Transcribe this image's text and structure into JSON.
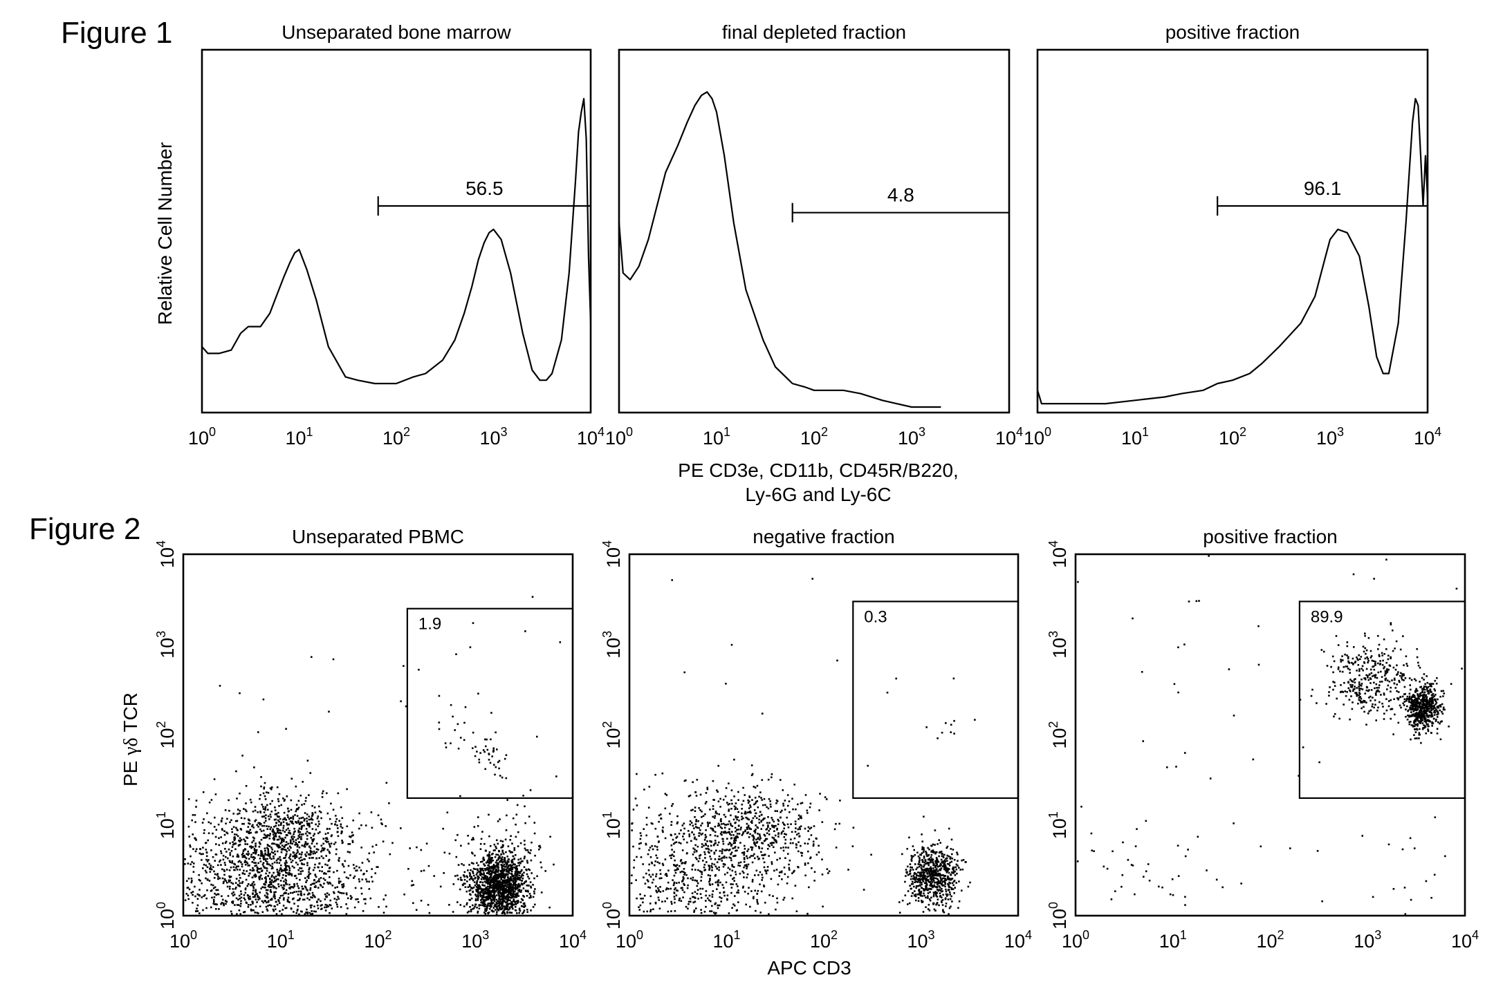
{
  "figures": [
    {
      "label": "Figure 1",
      "y_axis_label": "Relative Cell Number",
      "x_axis_label_lines": [
        "PE CD3e, CD11b, CD45R/B220,",
        "Ly-6G and Ly-6C"
      ]
    },
    {
      "label": "Figure 2",
      "y_axis_label": [
        "PE ",
        "γδ",
        " TCR"
      ],
      "x_axis_label": "APC CD3"
    }
  ],
  "chart_data": [
    {
      "type": "line",
      "title": "Unseparated bone marrow",
      "xlabel": "PE CD3e, CD11b, CD45R/B220, Ly-6G and Ly-6C",
      "ylabel": "Relative Cell Number",
      "xscale": "log",
      "xlim": [
        1,
        10000
      ],
      "ylim": [
        0,
        1
      ],
      "xticks": [
        {
          "base": "10",
          "exp": "0"
        },
        {
          "base": "10",
          "exp": "1"
        },
        {
          "base": "10",
          "exp": "2"
        },
        {
          "base": "10",
          "exp": "3"
        },
        {
          "base": "10",
          "exp": "4"
        }
      ],
      "gate": {
        "from": 65,
        "to": 10000,
        "level": 0.6,
        "label": "56.5"
      },
      "x": [
        1,
        1.15,
        1.5,
        2,
        2.5,
        3,
        4,
        5,
        6,
        7,
        8,
        9,
        10,
        12,
        15,
        20,
        30,
        40,
        60,
        80,
        100,
        150,
        200,
        300,
        400,
        500,
        600,
        700,
        800,
        900,
        1000,
        1200,
        1500,
        2000,
        2500,
        3000,
        3500,
        4000,
        5000,
        6000,
        7000,
        7500,
        8000,
        8500,
        9000,
        9500,
        10000
      ],
      "y": [
        0.18,
        0.16,
        0.16,
        0.17,
        0.22,
        0.24,
        0.24,
        0.28,
        0.34,
        0.39,
        0.43,
        0.46,
        0.47,
        0.41,
        0.32,
        0.18,
        0.09,
        0.08,
        0.07,
        0.07,
        0.07,
        0.09,
        0.1,
        0.14,
        0.2,
        0.28,
        0.36,
        0.44,
        0.49,
        0.52,
        0.53,
        0.5,
        0.4,
        0.22,
        0.11,
        0.08,
        0.08,
        0.1,
        0.2,
        0.4,
        0.68,
        0.82,
        0.88,
        0.92,
        0.8,
        0.45,
        0.25
      ]
    },
    {
      "type": "line",
      "title": "final depleted fraction",
      "xlabel": "PE CD3e, CD11b, CD45R/B220, Ly-6G and Ly-6C",
      "ylabel": "Relative Cell Number",
      "xscale": "log",
      "xlim": [
        1,
        10000
      ],
      "ylim": [
        0,
        1
      ],
      "xticks": [
        {
          "base": "10",
          "exp": "0"
        },
        {
          "base": "10",
          "exp": "1"
        },
        {
          "base": "10",
          "exp": "2"
        },
        {
          "base": "10",
          "exp": "3"
        },
        {
          "base": "10",
          "exp": "4"
        }
      ],
      "gate": {
        "from": 60,
        "to": 10000,
        "level": 0.58,
        "label": "4.8"
      },
      "x": [
        1,
        1.1,
        1.3,
        1.6,
        2,
        3,
        4,
        5,
        6,
        7,
        8,
        9,
        10,
        12,
        15,
        20,
        30,
        40,
        60,
        80,
        100,
        150,
        200,
        300,
        500,
        700,
        1000,
        1500,
        2000
      ],
      "y": [
        0.55,
        0.4,
        0.38,
        0.42,
        0.5,
        0.7,
        0.78,
        0.85,
        0.9,
        0.93,
        0.94,
        0.92,
        0.88,
        0.75,
        0.55,
        0.35,
        0.2,
        0.12,
        0.07,
        0.06,
        0.05,
        0.05,
        0.05,
        0.04,
        0.02,
        0.01,
        0,
        0,
        0
      ]
    },
    {
      "type": "line",
      "title": "positive fraction",
      "xlabel": "PE CD3e, CD11b, CD45R/B220, Ly-6G and Ly-6C",
      "ylabel": "Relative Cell Number",
      "xscale": "log",
      "xlim": [
        1,
        10000
      ],
      "ylim": [
        0,
        1
      ],
      "xticks": [
        {
          "base": "10",
          "exp": "0"
        },
        {
          "base": "10",
          "exp": "1"
        },
        {
          "base": "10",
          "exp": "2"
        },
        {
          "base": "10",
          "exp": "3"
        },
        {
          "base": "10",
          "exp": "4"
        }
      ],
      "gate": {
        "from": 70,
        "to": 10000,
        "level": 0.6,
        "label": "96.1"
      },
      "x": [
        1,
        1.05,
        1.1,
        1.3,
        2,
        5,
        10,
        20,
        30,
        50,
        70,
        100,
        150,
        200,
        300,
        500,
        700,
        900,
        1000,
        1200,
        1500,
        2000,
        2500,
        3000,
        3500,
        4000,
        5000,
        6000,
        7000,
        7500,
        8000,
        8500,
        9000,
        9500,
        10000
      ],
      "y": [
        0.05,
        0.03,
        0.01,
        0.01,
        0.01,
        0.01,
        0.02,
        0.03,
        0.04,
        0.05,
        0.07,
        0.08,
        0.1,
        0.13,
        0.18,
        0.25,
        0.33,
        0.45,
        0.5,
        0.53,
        0.52,
        0.45,
        0.3,
        0.15,
        0.1,
        0.1,
        0.25,
        0.55,
        0.85,
        0.92,
        0.9,
        0.75,
        0.6,
        0.75,
        0.62
      ]
    },
    {
      "type": "scatter",
      "title": "Unseparated PBMC",
      "xlabel": "APC CD3",
      "ylabel": "PE γδ TCR",
      "xscale": "log",
      "yscale": "log",
      "xlim": [
        1,
        10000
      ],
      "ylim": [
        1,
        10000
      ],
      "xticks": [
        {
          "base": "10",
          "exp": "0"
        },
        {
          "base": "10",
          "exp": "1"
        },
        {
          "base": "10",
          "exp": "2"
        },
        {
          "base": "10",
          "exp": "3"
        },
        {
          "base": "10",
          "exp": "4"
        }
      ],
      "yticks": [
        {
          "base": "10",
          "exp": "0"
        },
        {
          "base": "10",
          "exp": "1"
        },
        {
          "base": "10",
          "exp": "2"
        },
        {
          "base": "10",
          "exp": "3"
        },
        {
          "base": "10",
          "exp": "4"
        }
      ],
      "gate": {
        "x": [
          200,
          10000
        ],
        "y": [
          20,
          2500
        ],
        "label": "1.9"
      },
      "clusters": [
        {
          "center": [
            8,
            2.5
          ],
          "spread": [
            0.55,
            0.4
          ],
          "count": 1500
        },
        {
          "center": [
            10,
            8
          ],
          "spread": [
            0.35,
            0.25
          ],
          "count": 450
        },
        {
          "center": [
            1700,
            2.2
          ],
          "spread": [
            0.14,
            0.18
          ],
          "count": 1300
        },
        {
          "center": [
            1700,
            3
          ],
          "spread": [
            0.3,
            0.35
          ],
          "count": 200
        },
        {
          "center": [
            1500,
            60
          ],
          "spread": [
            0.1,
            0.1
          ],
          "count": 35
        },
        {
          "center": [
            600,
            120
          ],
          "spread": [
            0.2,
            0.18
          ],
          "count": 20
        }
      ],
      "scatter_points": 30
    },
    {
      "type": "scatter",
      "title": "negative fraction",
      "xlabel": "APC CD3",
      "ylabel": "PE γδ TCR",
      "xscale": "log",
      "yscale": "log",
      "xlim": [
        1,
        10000
      ],
      "ylim": [
        1,
        10000
      ],
      "xticks": [
        {
          "base": "10",
          "exp": "0"
        },
        {
          "base": "10",
          "exp": "1"
        },
        {
          "base": "10",
          "exp": "2"
        },
        {
          "base": "10",
          "exp": "3"
        },
        {
          "base": "10",
          "exp": "4"
        }
      ],
      "yticks": [
        {
          "base": "10",
          "exp": "0"
        },
        {
          "base": "10",
          "exp": "1"
        },
        {
          "base": "10",
          "exp": "2"
        },
        {
          "base": "10",
          "exp": "3"
        },
        {
          "base": "10",
          "exp": "4"
        }
      ],
      "gate": {
        "x": [
          200,
          10000
        ],
        "y": [
          20,
          3000
        ],
        "label": "0.3"
      },
      "clusters": [
        {
          "center": [
            5,
            3
          ],
          "spread": [
            0.5,
            0.4
          ],
          "count": 800
        },
        {
          "center": [
            20,
            9
          ],
          "spread": [
            0.35,
            0.25
          ],
          "count": 500
        },
        {
          "center": [
            1300,
            2.8
          ],
          "spread": [
            0.13,
            0.17
          ],
          "count": 650
        },
        {
          "center": [
            2000,
            120
          ],
          "spread": [
            0.1,
            0.08
          ],
          "count": 8
        }
      ],
      "scatter_points": 25
    },
    {
      "type": "scatter",
      "title": "positive fraction",
      "xlabel": "APC CD3",
      "ylabel": "PE γδ TCR",
      "xscale": "log",
      "yscale": "log",
      "xlim": [
        1,
        10000
      ],
      "ylim": [
        1,
        10000
      ],
      "xticks": [
        {
          "base": "10",
          "exp": "0"
        },
        {
          "base": "10",
          "exp": "1"
        },
        {
          "base": "10",
          "exp": "2"
        },
        {
          "base": "10",
          "exp": "3"
        },
        {
          "base": "10",
          "exp": "4"
        }
      ],
      "yticks": [
        {
          "base": "10",
          "exp": "0"
        },
        {
          "base": "10",
          "exp": "1"
        },
        {
          "base": "10",
          "exp": "2"
        },
        {
          "base": "10",
          "exp": "3"
        },
        {
          "base": "10",
          "exp": "4"
        }
      ],
      "gate": {
        "x": [
          200,
          10000
        ],
        "y": [
          20,
          3000
        ],
        "label": "89.9"
      },
      "clusters": [
        {
          "center": [
            1000,
            400
          ],
          "spread": [
            0.22,
            0.22
          ],
          "count": 350
        },
        {
          "center": [
            3600,
            200
          ],
          "spread": [
            0.09,
            0.13
          ],
          "count": 550
        },
        {
          "center": [
            6,
            3
          ],
          "spread": [
            0.3,
            0.3
          ],
          "count": 30
        },
        {
          "center": [
            3000,
            3
          ],
          "spread": [
            0.08,
            0.2
          ],
          "count": 10
        }
      ],
      "scatter_points": 60
    }
  ]
}
